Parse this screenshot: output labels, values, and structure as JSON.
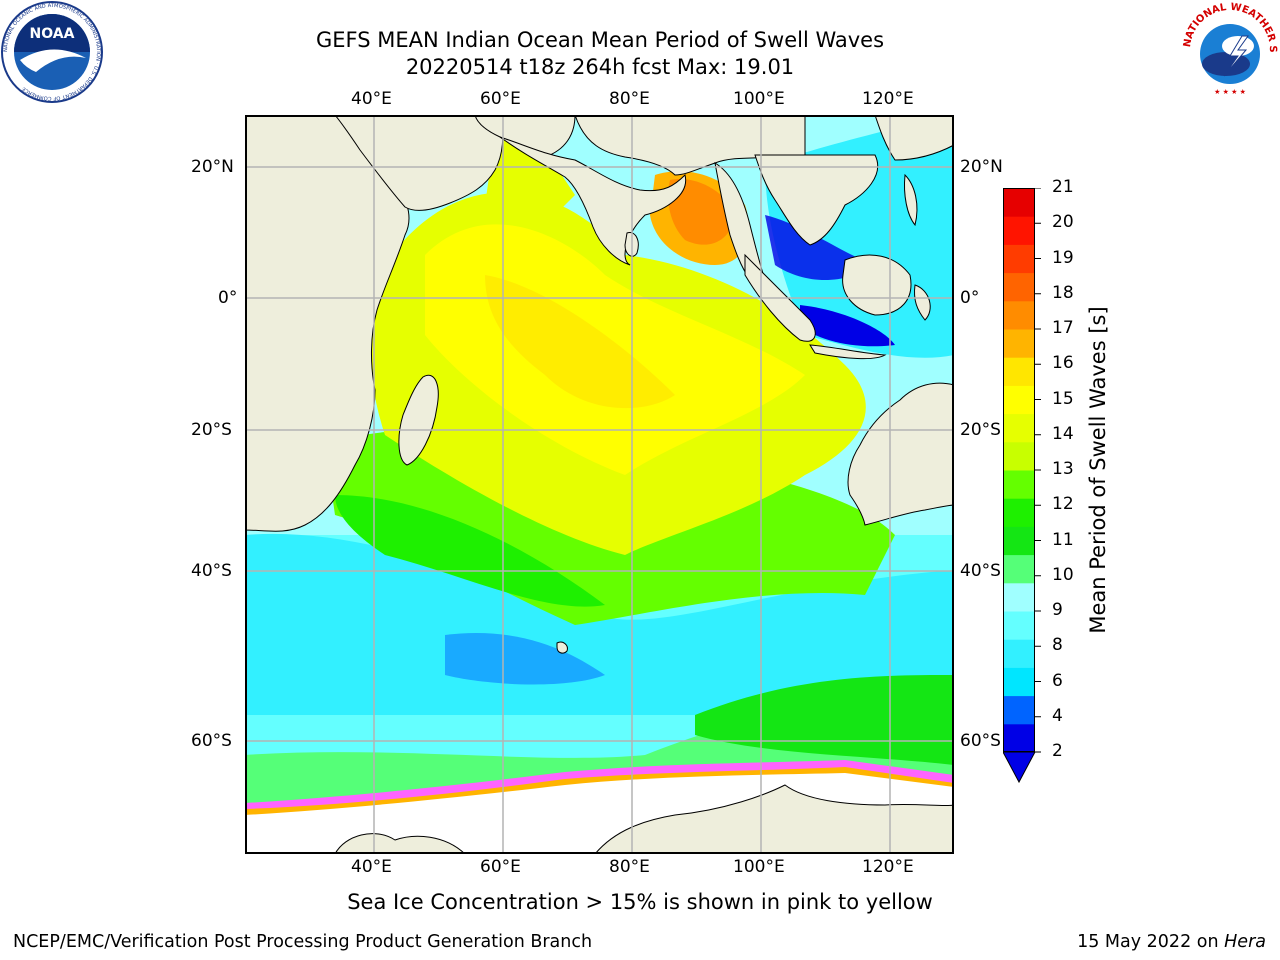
{
  "title": {
    "line1": "GEFS MEAN Indian Ocean Mean Period of Swell Waves",
    "line2": "20220514 t18z 264h fcst   Max: 19.01"
  },
  "map": {
    "lon_ticks_top": [
      "40°E",
      "60°E",
      "80°E",
      "100°E",
      "120°E"
    ],
    "lon_ticks_bottom": [
      "40°E",
      "60°E",
      "80°E",
      "100°E",
      "120°E"
    ],
    "lat_ticks_left": [
      "20°N",
      "0°",
      "20°S",
      "40°S",
      "60°S"
    ],
    "lat_ticks_right": [
      "20°N",
      "0°",
      "20°S",
      "40°S",
      "60°S"
    ],
    "lon_range": [
      20,
      130
    ],
    "lat_range": [
      -71,
      27
    ],
    "colors": {
      "land": "#eeeedc",
      "grid": "#b4b4b4",
      "coast": "#000000"
    }
  },
  "colorbar": {
    "title": "Mean Period of Swell Waves [s]",
    "tick_labels": [
      "21",
      "20",
      "19",
      "18",
      "17",
      "16",
      "15",
      "14",
      "13",
      "12",
      "11",
      "10",
      "9",
      "8",
      "6",
      "4",
      "2"
    ],
    "colors": [
      "#0000e6",
      "#0064ff",
      "#00e6ff",
      "#32f0ff",
      "#64ffff",
      "#a0ffff",
      "#55ff78",
      "#14e614",
      "#1ef000",
      "#64ff00",
      "#c8ff00",
      "#e6ff00",
      "#ffff00",
      "#ffe600",
      "#ffb400",
      "#ff8c00",
      "#ff6400",
      "#ff3c00",
      "#ff1400",
      "#e60000"
    ]
  },
  "caption": "Sea Ice Concentration > 15% is shown in pink to yellow",
  "footer": {
    "left": "NCEP/EMC/Verification Post Processing Product Generation Branch",
    "right_prefix": "15 May 2022 on ",
    "right_italic": "Hera"
  },
  "logos": {
    "left": "noaa-logo",
    "right": "nws-logo",
    "left_ring_text": "NATIONAL OCEANIC AND ATMOSPHERIC ADMINISTRATION · U.S. DEPARTMENT OF COMMERCE",
    "right_ring_text": "NATIONAL WEATHER SERVICE",
    "left_center_text": "NOAA"
  }
}
